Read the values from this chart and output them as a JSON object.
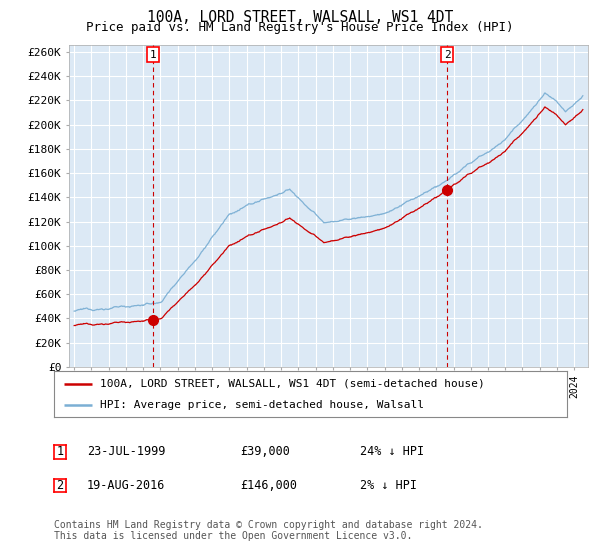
{
  "title": "100A, LORD STREET, WALSALL, WS1 4DT",
  "subtitle": "Price paid vs. HM Land Registry's House Price Index (HPI)",
  "ylabel_ticks": [
    "£0",
    "£20K",
    "£40K",
    "£60K",
    "£80K",
    "£100K",
    "£120K",
    "£140K",
    "£160K",
    "£180K",
    "£200K",
    "£220K",
    "£240K",
    "£260K"
  ],
  "ytick_values": [
    0,
    20000,
    40000,
    60000,
    80000,
    100000,
    120000,
    140000,
    160000,
    180000,
    200000,
    220000,
    240000,
    260000
  ],
  "ylim": [
    0,
    266000
  ],
  "sale1": {
    "year": 1999.56,
    "price": 39000,
    "label": "1"
  },
  "sale2": {
    "year": 2016.63,
    "price": 146000,
    "label": "2"
  },
  "hpi_color": "#7bafd4",
  "price_color": "#cc0000",
  "vline_color": "#cc0000",
  "grid_color": "#cccccc",
  "plot_bg_color": "#dce9f5",
  "background_color": "#ffffff",
  "legend_label1": "100A, LORD STREET, WALSALL, WS1 4DT (semi-detached house)",
  "legend_label2": "HPI: Average price, semi-detached house, Walsall",
  "table_row1": [
    "1",
    "23-JUL-1999",
    "£39,000",
    "24% ↓ HPI"
  ],
  "table_row2": [
    "2",
    "19-AUG-2016",
    "£146,000",
    "2% ↓ HPI"
  ],
  "footer": "Contains HM Land Registry data © Crown copyright and database right 2024.\nThis data is licensed under the Open Government Licence v3.0.",
  "xstart": 1995,
  "xend": 2024.5,
  "monospace_font": "DejaVu Sans Mono"
}
